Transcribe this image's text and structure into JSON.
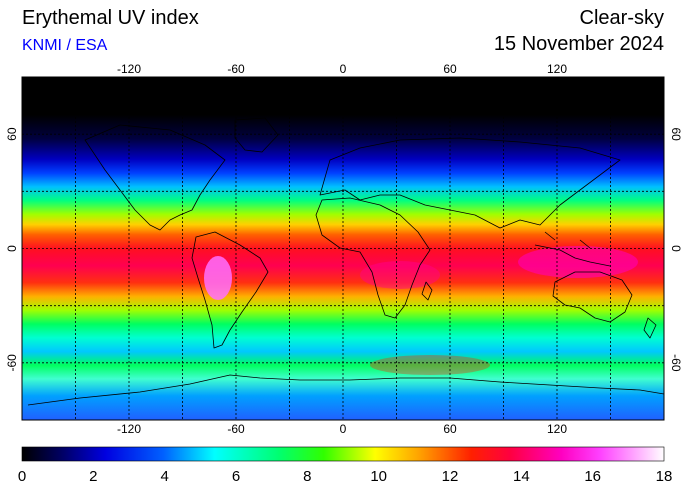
{
  "header": {
    "title": "Erythemal UV index",
    "credit": "KNMI / ESA",
    "sky_condition": "Clear-sky",
    "date": "15 November 2024"
  },
  "map": {
    "lon_ticks_top": [
      "-120",
      "-60",
      "0",
      "60",
      "120"
    ],
    "lon_ticks_bottom": [
      "-120",
      "-60",
      "0",
      "60",
      "120"
    ],
    "lat_ticks_left": [
      "60",
      "0",
      "-60"
    ],
    "lat_ticks_right": [
      "60",
      "0",
      "-60"
    ],
    "lon_values": [
      -120,
      -60,
      0,
      60,
      120
    ],
    "lat_values": [
      60,
      0,
      -60
    ],
    "gridline_lons": [
      -150,
      -120,
      -90,
      -60,
      -30,
      0,
      30,
      60,
      90,
      120,
      150
    ],
    "gridline_lats": [
      60,
      30,
      0,
      -30,
      -60
    ],
    "lon_range": [
      -180,
      180
    ],
    "lat_range": [
      -90,
      90
    ]
  },
  "colorbar": {
    "ticks": [
      "0",
      "2",
      "4",
      "6",
      "8",
      "10",
      "12",
      "14",
      "16",
      "18"
    ],
    "range": [
      0,
      18
    ]
  },
  "colors": {
    "scale": [
      "#000000",
      "#00008b",
      "#0000ff",
      "#00bfff",
      "#00ffff",
      "#00ff80",
      "#00ff00",
      "#80ff00",
      "#ffff00",
      "#ffaa00",
      "#ff4000",
      "#ff0000",
      "#ff0080",
      "#ff00ff",
      "#ff80ff",
      "#ffffff"
    ],
    "credit": "#0000ff"
  }
}
